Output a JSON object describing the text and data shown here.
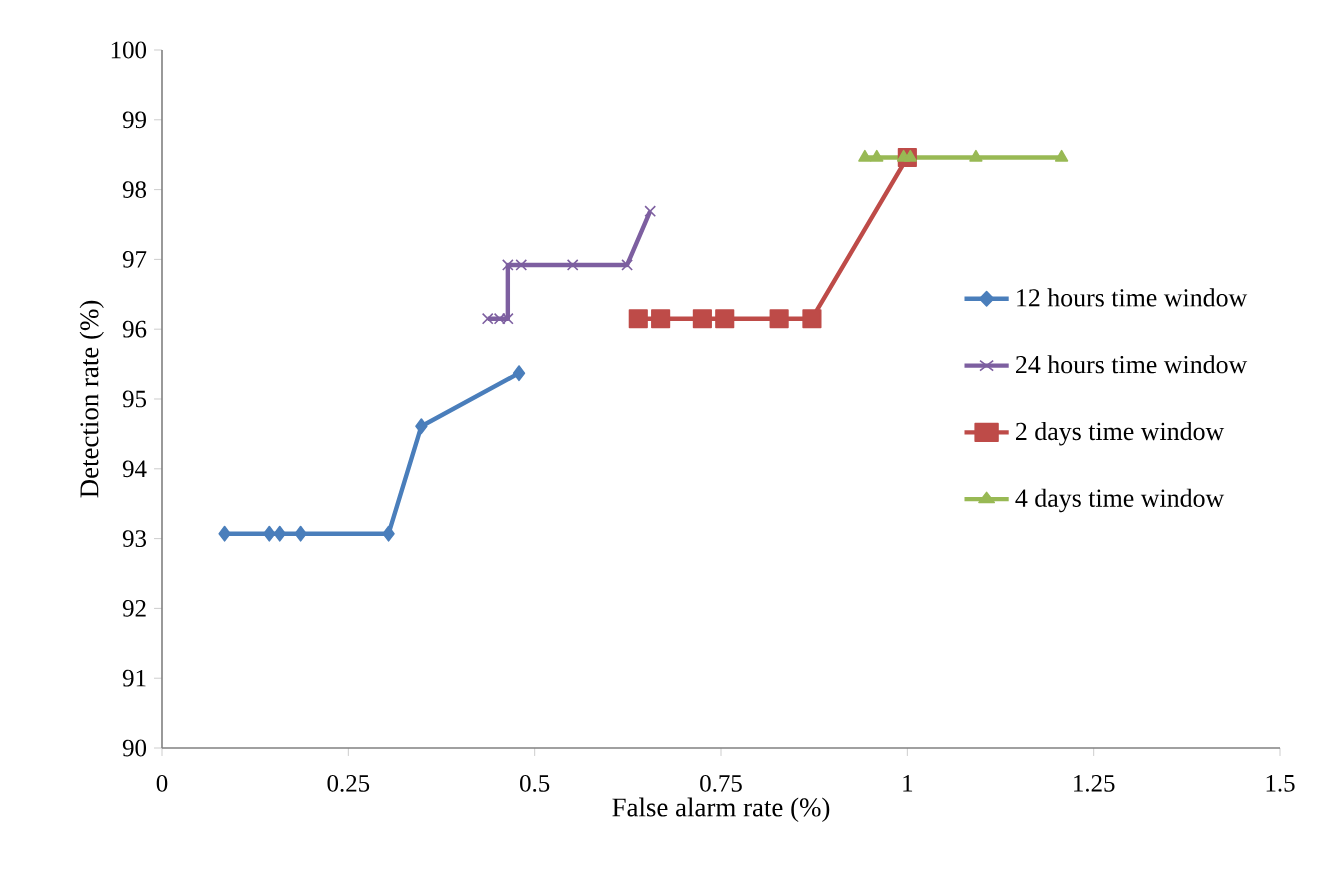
{
  "chart_data": {
    "type": "line",
    "xlabel": "False alarm rate (%)",
    "ylabel": "Detection rate (%)",
    "xlim": [
      0,
      1.5
    ],
    "xticks": [
      0,
      0.25,
      0.5,
      0.75,
      1,
      1.25,
      1.5
    ],
    "ylim": [
      90,
      100
    ],
    "yticks": [
      90,
      91,
      92,
      93,
      94,
      95,
      96,
      97,
      98,
      99,
      100
    ],
    "grid": false,
    "legend": "right",
    "series": [
      {
        "name": "12 hours time window",
        "color": "#4a7ebb",
        "marker": "diamond",
        "x": [
          0.084,
          0.144,
          0.158,
          0.186,
          0.304,
          0.348,
          0.479
        ],
        "values": [
          93.07,
          93.07,
          93.07,
          93.07,
          93.07,
          94.61,
          95.37
        ]
      },
      {
        "name": "24 hours time window",
        "color": "#7d5fa0",
        "marker": "cross",
        "x": [
          0.437,
          0.453,
          0.464,
          0.464,
          0.482,
          0.551,
          0.624,
          0.655
        ],
        "values": [
          96.15,
          96.15,
          96.15,
          96.92,
          96.92,
          96.92,
          96.92,
          97.69
        ]
      },
      {
        "name": "2 days time window",
        "color": "#be4b48",
        "marker": "square",
        "x": [
          0.639,
          0.669,
          0.725,
          0.755,
          0.828,
          0.872,
          1.0
        ],
        "values": [
          96.15,
          96.15,
          96.15,
          96.15,
          96.15,
          96.15,
          98.46
        ]
      },
      {
        "name": "4 days time window",
        "color": "#98b954",
        "marker": "triangle",
        "x": [
          0.943,
          0.959,
          0.995,
          1.004,
          1.092,
          1.207
        ],
        "values": [
          98.46,
          98.46,
          98.46,
          98.46,
          98.46,
          98.46
        ]
      }
    ]
  }
}
